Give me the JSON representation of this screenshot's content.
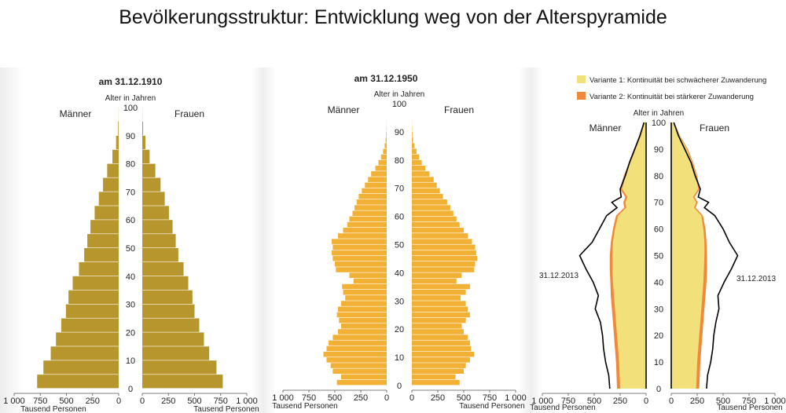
{
  "title": "Bevölkerungsstruktur: Entwicklung weg von der Alterspyramide",
  "colors": {
    "p1910": "#b8962e",
    "p1950": "#f2b134",
    "variant1": "#f2e07a",
    "variant2": "#ef8a3c",
    "line2013": "#000000"
  },
  "chart_data": [
    {
      "type": "bar",
      "title": "am 31.12.1910",
      "age_axis_label": "Alter in Jahren",
      "male_label": "Männer",
      "female_label": "Frauen",
      "value_unit": "Tausend Personen",
      "ages": [
        0,
        5,
        10,
        15,
        20,
        25,
        30,
        35,
        40,
        45,
        50,
        55,
        60,
        65,
        70,
        75,
        80,
        85,
        90,
        95,
        100
      ],
      "male": [
        780,
        720,
        650,
        600,
        550,
        505,
        480,
        440,
        380,
        330,
        300,
        270,
        230,
        190,
        150,
        110,
        60,
        25,
        6,
        1,
        0
      ],
      "female": [
        770,
        710,
        640,
        590,
        545,
        500,
        480,
        440,
        395,
        345,
        320,
        290,
        255,
        215,
        175,
        125,
        70,
        30,
        8,
        1,
        0
      ],
      "age_ticks": [
        "0",
        "10",
        "20",
        "30",
        "40",
        "50",
        "60",
        "70",
        "80",
        "90",
        "100"
      ],
      "x_ticks_left": [
        "1 000",
        "750",
        "500",
        "250",
        "0"
      ],
      "x_ticks_right": [
        "0",
        "250",
        "500",
        "750",
        "1 000"
      ],
      "xlim": [
        0,
        1000
      ],
      "ylim": [
        0,
        100
      ]
    },
    {
      "type": "bar",
      "title": "am 31.12.1950",
      "age_axis_label": "Alter in Jahren",
      "male_label": "Männer",
      "female_label": "Frauen",
      "value_unit": "Tausend Personen",
      "ages": [
        0,
        2,
        4,
        6,
        8,
        10,
        12,
        14,
        16,
        18,
        20,
        22,
        24,
        26,
        28,
        30,
        32,
        34,
        36,
        38,
        40,
        42,
        44,
        46,
        48,
        50,
        52,
        54,
        56,
        58,
        60,
        62,
        64,
        66,
        68,
        70,
        72,
        74,
        76,
        78,
        80,
        82,
        84,
        86,
        88,
        90,
        92,
        94,
        96,
        98
      ],
      "male": [
        480,
        440,
        520,
        540,
        580,
        610,
        580,
        560,
        520,
        470,
        440,
        460,
        480,
        470,
        440,
        400,
        420,
        430,
        320,
        360,
        490,
        500,
        520,
        530,
        520,
        530,
        470,
        420,
        380,
        360,
        330,
        310,
        290,
        270,
        240,
        210,
        180,
        150,
        110,
        80,
        55,
        35,
        20,
        10,
        5,
        2,
        1,
        0,
        0,
        0
      ],
      "female": [
        460,
        420,
        500,
        520,
        560,
        600,
        570,
        560,
        540,
        500,
        480,
        520,
        560,
        540,
        520,
        470,
        520,
        560,
        430,
        480,
        600,
        610,
        630,
        620,
        610,
        580,
        540,
        500,
        460,
        430,
        400,
        370,
        340,
        300,
        270,
        240,
        210,
        170,
        130,
        95,
        70,
        45,
        25,
        12,
        6,
        3,
        1,
        0,
        0,
        0
      ],
      "age_ticks": [
        "0",
        "10",
        "20",
        "30",
        "40",
        "50",
        "60",
        "70",
        "80",
        "90",
        "100"
      ],
      "x_ticks_left": [
        "1 000",
        "750",
        "500",
        "250",
        "0"
      ],
      "x_ticks_right": [
        "0",
        "250",
        "500",
        "750",
        "1 000"
      ],
      "xlim": [
        0,
        1000
      ],
      "ylim": [
        0,
        100
      ]
    },
    {
      "type": "area",
      "age_axis_label": "Alter in Jahren",
      "male_label": "Männer",
      "female_label": "Frauen",
      "value_unit": "Tausend Personen",
      "legend": [
        "Variante 1: Kontinuität bei schwächerer Zuwanderung",
        "Variante 2: Kontinuität bei stärkerer Zuwanderung"
      ],
      "legend_position": "top-right",
      "line_label": "31.12.2013",
      "ages": [
        0,
        5,
        10,
        15,
        20,
        25,
        30,
        35,
        40,
        45,
        50,
        55,
        60,
        65,
        68,
        70,
        72,
        75,
        80,
        85,
        90,
        95,
        100
      ],
      "variant1_male": [
        250,
        255,
        260,
        270,
        280,
        290,
        300,
        310,
        320,
        325,
        325,
        320,
        300,
        270,
        190,
        200,
        180,
        230,
        200,
        150,
        100,
        50,
        15
      ],
      "variant1_female": [
        240,
        245,
        250,
        260,
        270,
        280,
        290,
        300,
        310,
        315,
        320,
        320,
        310,
        290,
        220,
        240,
        210,
        260,
        240,
        200,
        150,
        80,
        25
      ],
      "variant2_male": [
        280,
        285,
        290,
        300,
        310,
        320,
        330,
        340,
        345,
        350,
        350,
        340,
        320,
        290,
        210,
        220,
        200,
        250,
        215,
        160,
        105,
        55,
        18
      ],
      "variant2_female": [
        270,
        275,
        280,
        290,
        300,
        310,
        320,
        330,
        340,
        345,
        345,
        340,
        330,
        305,
        235,
        255,
        225,
        275,
        250,
        210,
        160,
        85,
        28
      ],
      "line_male": [
        350,
        360,
        390,
        410,
        420,
        440,
        490,
        460,
        510,
        580,
        640,
        520,
        450,
        380,
        280,
        330,
        240,
        250,
        200,
        160,
        110,
        60,
        20
      ],
      "line_female": [
        340,
        350,
        380,
        400,
        410,
        430,
        460,
        450,
        510,
        580,
        640,
        560,
        500,
        420,
        320,
        360,
        260,
        280,
        230,
        190,
        130,
        70,
        25
      ],
      "age_ticks": [
        "0",
        "10",
        "20",
        "30",
        "40",
        "50",
        "60",
        "70",
        "80",
        "90",
        "100"
      ],
      "x_ticks_left": [
        "1 000",
        "750",
        "500",
        "250",
        "0"
      ],
      "x_ticks_right": [
        "0",
        "250",
        "500",
        "750",
        "1 000"
      ],
      "xlim": [
        0,
        1000
      ],
      "ylim": [
        0,
        100
      ]
    }
  ]
}
